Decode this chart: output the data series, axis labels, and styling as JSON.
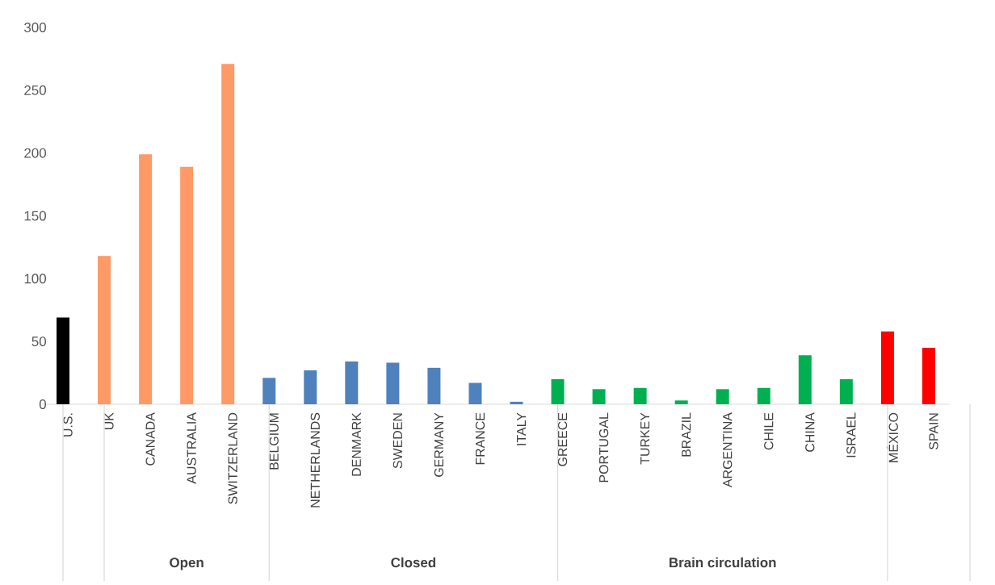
{
  "chart_data": {
    "type": "bar",
    "categories": [
      "U.S.",
      "UK",
      "CANADA",
      "AUSTRALIA",
      "SWITZERLAND",
      "BELGIUM",
      "NETHERLANDS",
      "DENMARK",
      "SWEDEN",
      "GERMANY",
      "FRANCE",
      "ITALY",
      "GREECE",
      "PORTUGAL",
      "TURKEY",
      "BRAZIL",
      "ARGENTINA",
      "CHILE",
      "CHINA",
      "ISRAEL",
      "MÉXICO",
      "SPAIN"
    ],
    "values": [
      69,
      118,
      199,
      189,
      271,
      21,
      27,
      34,
      33,
      29,
      17,
      2,
      20,
      12,
      13,
      3,
      12,
      13,
      39,
      20,
      58,
      45
    ],
    "colors": [
      "#000000",
      "#ff9966",
      "#ff9966",
      "#ff9966",
      "#ff9966",
      "#4f81bd",
      "#4f81bd",
      "#4f81bd",
      "#4f81bd",
      "#4f81bd",
      "#4f81bd",
      "#4f81bd",
      "#00b050",
      "#00b050",
      "#00b050",
      "#00b050",
      "#00b050",
      "#00b050",
      "#00b050",
      "#00b050",
      "#ff0000",
      "#ff0000"
    ],
    "ylim": [
      0,
      300
    ],
    "yticks": [
      0,
      50,
      100,
      150,
      200,
      250,
      300
    ],
    "annotations": [
      "Open",
      "Closed",
      "Brain circulation"
    ]
  }
}
